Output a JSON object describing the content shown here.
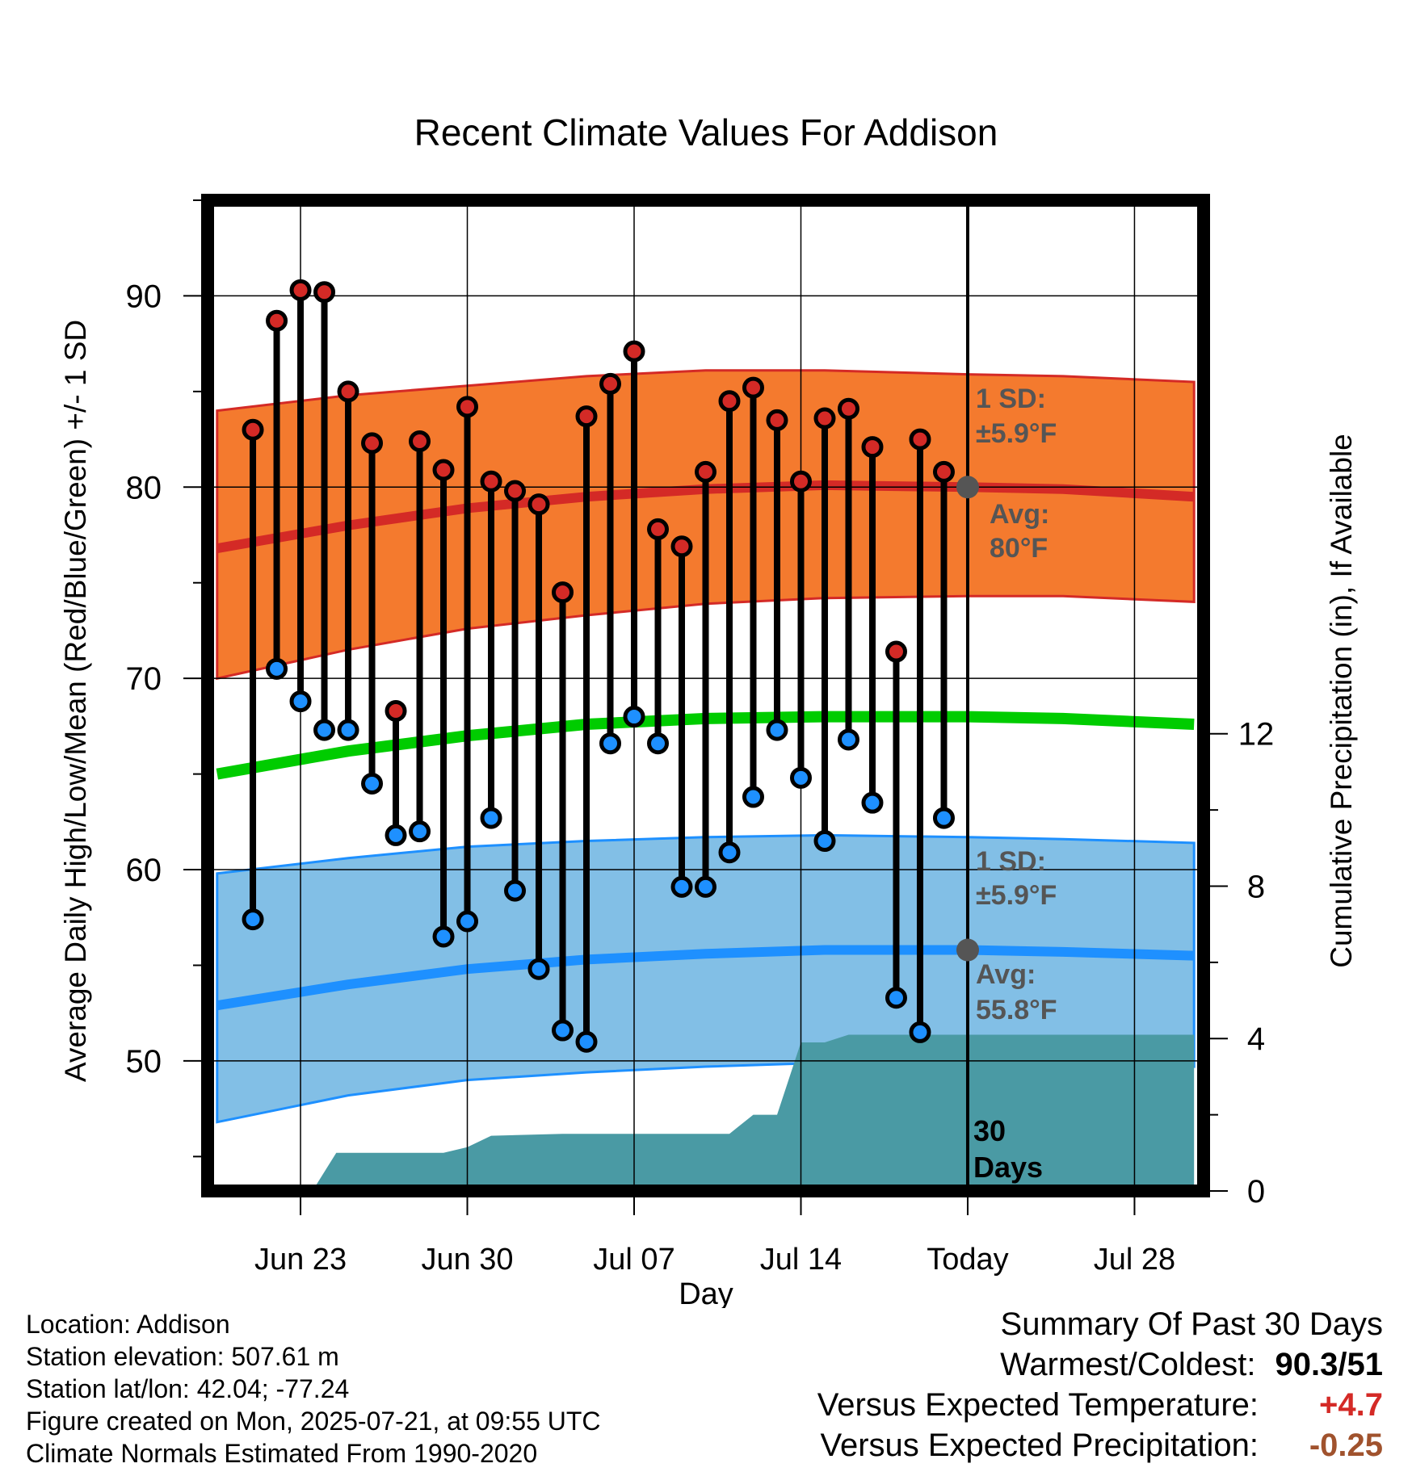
{
  "chart_data": {
    "type": "line",
    "title": "Recent Climate Values For Addison",
    "xlabel": "Day",
    "ylabel": "Average Daily High/Low/Mean (Red/Blue/Green) +/- 1 SD",
    "y2label": "Cumulative Precipitation (in), If Available",
    "ylim": [
      43.2,
      95
    ],
    "y2lim": [
      0,
      26
    ],
    "xlim": [
      -0.9,
      40.9
    ],
    "x_ticks": [
      {
        "x": 3,
        "label": "Jun 23"
      },
      {
        "x": 10,
        "label": "Jun 30"
      },
      {
        "x": 17,
        "label": "Jul 07"
      },
      {
        "x": 24,
        "label": "Jul 14"
      },
      {
        "x": 31,
        "label": "Today"
      },
      {
        "x": 38,
        "label": "Jul 28"
      }
    ],
    "y_ticks": [
      50,
      60,
      70,
      80,
      90
    ],
    "y2_ticks": [
      0,
      4,
      8,
      12
    ],
    "grid": true,
    "today_x": 31,
    "days_label": [
      "30",
      "Days"
    ],
    "daily": {
      "x": [
        1,
        2,
        3,
        4,
        5,
        6,
        7,
        8,
        9,
        10,
        11,
        12,
        13,
        14,
        15,
        16,
        17,
        18,
        19,
        20,
        21,
        22,
        23,
        24,
        25,
        26,
        27,
        28,
        29,
        30
      ],
      "high": [
        83.0,
        88.7,
        90.3,
        90.2,
        85.0,
        82.3,
        68.3,
        82.4,
        80.9,
        84.2,
        80.3,
        79.8,
        79.1,
        74.5,
        83.7,
        85.4,
        87.1,
        77.8,
        76.9,
        80.8,
        84.5,
        85.2,
        83.5,
        80.3,
        83.6,
        84.1,
        82.1,
        71.4,
        82.5,
        80.8
      ],
      "low": [
        57.4,
        70.5,
        68.8,
        67.3,
        67.3,
        64.5,
        61.8,
        62.0,
        56.5,
        57.3,
        62.7,
        58.9,
        54.8,
        51.6,
        51.0,
        66.6,
        68.0,
        66.6,
        59.1,
        59.1,
        60.9,
        63.8,
        67.3,
        64.8,
        61.5,
        66.8,
        63.5,
        53.3,
        51.5,
        62.7
      ]
    },
    "normals": {
      "x": [
        -0.5,
        5,
        10,
        15,
        20,
        25,
        31,
        35,
        40.5
      ],
      "high_avg": [
        76.8,
        78.0,
        78.9,
        79.5,
        79.9,
        80.1,
        80.0,
        79.9,
        79.5
      ],
      "high_upper": [
        84.0,
        84.8,
        85.3,
        85.8,
        86.1,
        86.1,
        85.9,
        85.8,
        85.5
      ],
      "high_lower": [
        70.0,
        71.5,
        72.6,
        73.3,
        73.9,
        74.2,
        74.3,
        74.3,
        74.0
      ],
      "mean_avg": [
        65.0,
        66.2,
        67.0,
        67.6,
        67.9,
        68.0,
        68.0,
        67.9,
        67.6
      ],
      "low_avg": [
        52.9,
        54.0,
        54.8,
        55.3,
        55.6,
        55.8,
        55.8,
        55.7,
        55.5
      ],
      "low_upper": [
        59.8,
        60.6,
        61.2,
        61.5,
        61.7,
        61.8,
        61.7,
        61.6,
        61.4
      ],
      "low_lower": [
        46.8,
        48.2,
        49.0,
        49.4,
        49.7,
        49.9,
        50.0,
        50.0,
        49.7
      ]
    },
    "precipitation": {
      "x": [
        3.5,
        4.5,
        9,
        10,
        11,
        14,
        21,
        22,
        23,
        24,
        25,
        26,
        31,
        40.5
      ],
      "y": [
        0,
        1.0,
        1.0,
        1.15,
        1.45,
        1.5,
        1.5,
        2.0,
        2.0,
        3.9,
        3.9,
        4.1,
        4.1,
        4.1
      ]
    },
    "annotations": {
      "high_sd_label": [
        "1 SD:",
        "±5.9°F"
      ],
      "high_avg_label": [
        "Avg:",
        "80°F"
      ],
      "high_avg_marker": 80.0,
      "low_sd_label": [
        "1 SD:",
        "±5.9°F"
      ],
      "low_avg_label": [
        "Avg:",
        "55.8°F"
      ],
      "low_avg_marker": 55.8
    },
    "colors": {
      "high_band": "#f47a2e",
      "high_line": "#d42a26",
      "low_band": "#82bfe6",
      "low_line": "#1e90ff",
      "mean_line": "#00cc00",
      "precip": "#4a9aa4",
      "high_dot": "#d42a26",
      "low_dot": "#1e90ff",
      "annotation": "#555555",
      "warm_value": "#d42a26",
      "precip_value": "#a0522d"
    }
  },
  "info": {
    "location": "Location: Addison",
    "elevation": "Station elevation: 507.61 m",
    "latlon": "Station lat/lon: 42.04; -77.24",
    "created": "Figure created on Mon, 2025-07-21, at 09:55 UTC",
    "normals": "Climate Normals Estimated From 1990-2020"
  },
  "summary": {
    "heading": "Summary Of Past 30 Days",
    "warmest_label": "Warmest/Coldest:",
    "warmest_value": "90.3/51",
    "temp_label": "Versus Expected Temperature:",
    "temp_value": "+4.7",
    "precip_label": "Versus Expected Precipitation:",
    "precip_value": "-0.25"
  }
}
